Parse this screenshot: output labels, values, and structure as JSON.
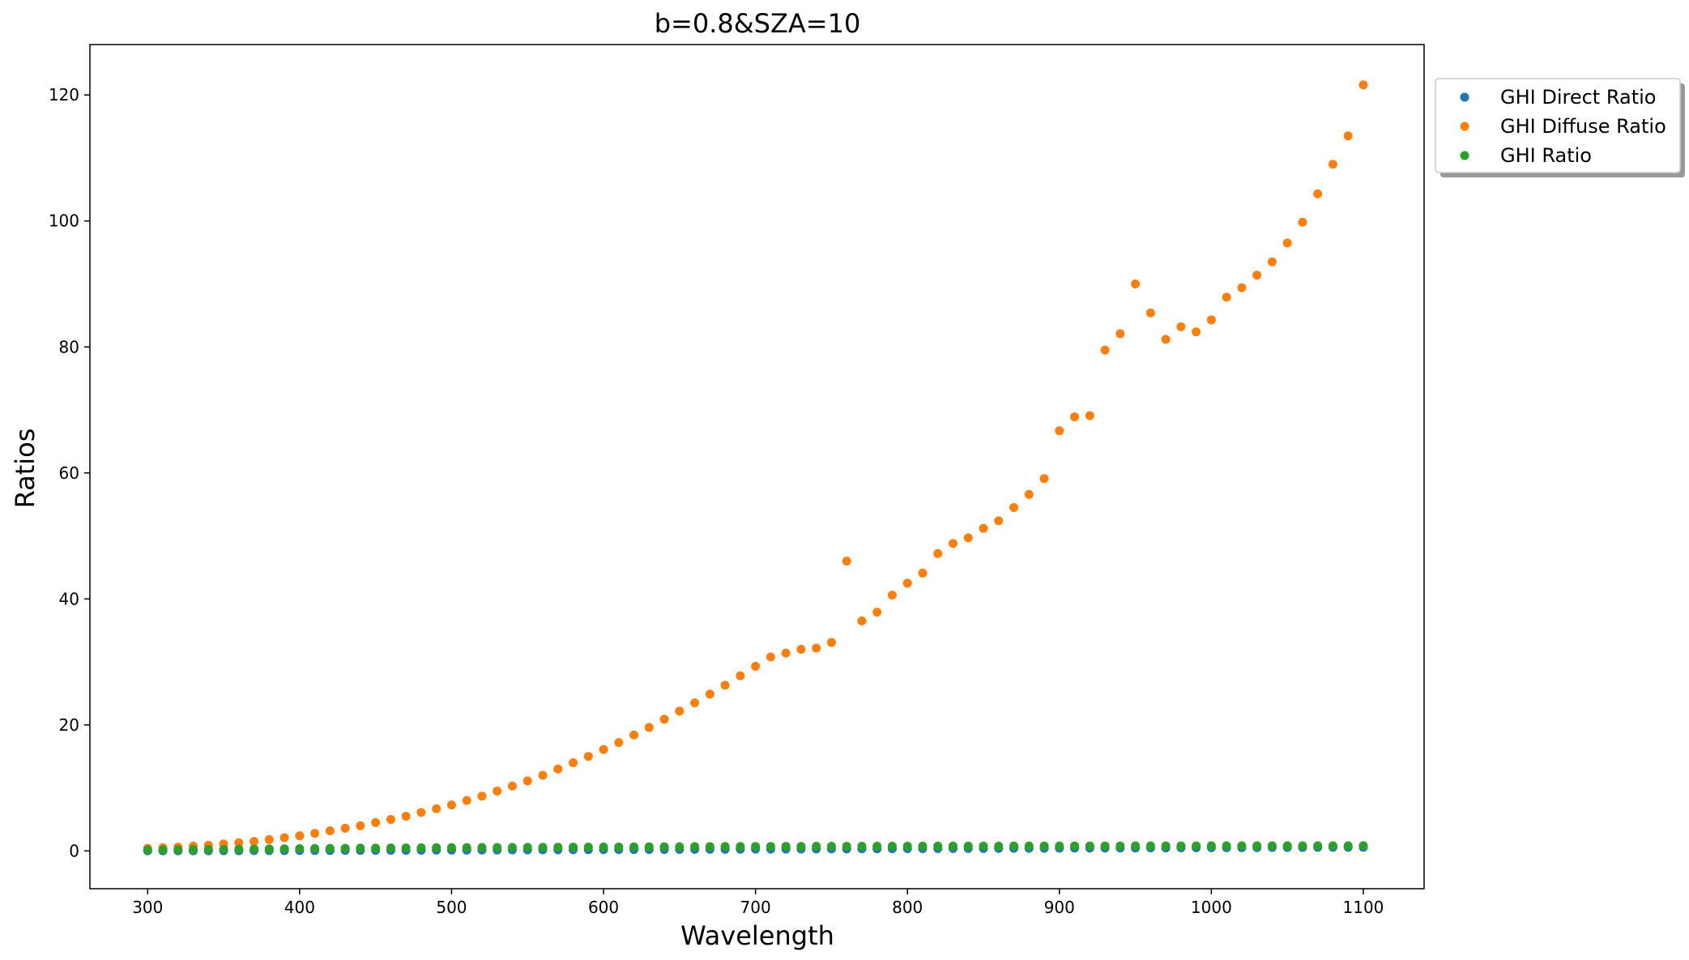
{
  "chart_data": {
    "type": "scatter",
    "title": "b=0.8&SZA=10",
    "xlabel": "Wavelength",
    "ylabel": "Ratios",
    "xlim": [
      262,
      1140
    ],
    "ylim": [
      -6,
      128
    ],
    "xticks": [
      300,
      400,
      500,
      600,
      700,
      800,
      900,
      1000,
      1100
    ],
    "yticks": [
      0,
      20,
      40,
      60,
      80,
      100,
      120
    ],
    "grid": false,
    "legend_position": "outside-top-right",
    "x": [
      300,
      310,
      320,
      330,
      340,
      350,
      360,
      370,
      380,
      390,
      400,
      410,
      420,
      430,
      440,
      450,
      460,
      470,
      480,
      490,
      500,
      510,
      520,
      530,
      540,
      550,
      560,
      570,
      580,
      590,
      600,
      610,
      620,
      630,
      640,
      650,
      660,
      670,
      680,
      690,
      700,
      710,
      720,
      730,
      740,
      750,
      760,
      770,
      780,
      790,
      800,
      810,
      820,
      830,
      840,
      850,
      860,
      870,
      880,
      890,
      900,
      910,
      920,
      930,
      940,
      950,
      960,
      970,
      980,
      990,
      1000,
      1010,
      1020,
      1030,
      1040,
      1050,
      1060,
      1070,
      1080,
      1090,
      1100
    ],
    "series": [
      {
        "name": "GHI Direct Ratio",
        "color": "#1f77b4",
        "values": [
          0.01,
          0.01,
          0.01,
          0.02,
          0.02,
          0.03,
          0.03,
          0.04,
          0.04,
          0.05,
          0.06,
          0.06,
          0.07,
          0.08,
          0.08,
          0.09,
          0.1,
          0.1,
          0.11,
          0.12,
          0.13,
          0.13,
          0.14,
          0.15,
          0.16,
          0.16,
          0.17,
          0.18,
          0.19,
          0.19,
          0.2,
          0.21,
          0.22,
          0.22,
          0.23,
          0.24,
          0.25,
          0.26,
          0.26,
          0.27,
          0.28,
          0.29,
          0.29,
          0.3,
          0.31,
          0.32,
          0.32,
          0.33,
          0.34,
          0.35,
          0.36,
          0.36,
          0.37,
          0.38,
          0.39,
          0.39,
          0.4,
          0.41,
          0.42,
          0.42,
          0.43,
          0.44,
          0.45,
          0.45,
          0.46,
          0.47,
          0.48,
          0.48,
          0.49,
          0.5,
          0.51,
          0.51,
          0.52,
          0.53,
          0.54,
          0.54,
          0.55,
          0.56,
          0.57,
          0.57,
          0.58
        ]
      },
      {
        "name": "GHI Diffuse Ratio",
        "color": "#ff7f0e",
        "values": [
          0.4,
          0.5,
          0.6,
          0.75,
          0.9,
          1.1,
          1.3,
          1.5,
          1.8,
          2.1,
          2.4,
          2.8,
          3.2,
          3.6,
          4.0,
          4.5,
          5.0,
          5.5,
          6.1,
          6.7,
          7.3,
          8.0,
          8.7,
          9.5,
          10.3,
          11.1,
          12.0,
          13.0,
          14.0,
          15.0,
          16.1,
          17.2,
          18.4,
          19.6,
          20.9,
          22.2,
          23.5,
          24.9,
          26.3,
          27.8,
          29.3,
          30.8,
          31.4,
          32.0,
          32.2,
          33.1,
          46.0,
          36.5,
          37.9,
          40.6,
          42.5,
          44.1,
          47.2,
          48.8,
          49.7,
          51.2,
          52.4,
          54.5,
          56.6,
          59.1,
          66.7,
          68.9,
          69.1,
          79.5,
          82.1,
          90.0,
          85.4,
          81.2,
          83.2,
          82.4,
          84.3,
          87.9,
          89.4,
          91.4,
          93.5,
          96.5,
          99.8,
          104.3,
          109.0,
          113.5,
          121.6
        ]
      },
      {
        "name": "GHI Ratio",
        "color": "#2ca02c",
        "values": [
          0.15,
          0.18,
          0.2,
          0.22,
          0.24,
          0.26,
          0.28,
          0.3,
          0.32,
          0.34,
          0.36,
          0.38,
          0.4,
          0.42,
          0.44,
          0.45,
          0.47,
          0.48,
          0.5,
          0.51,
          0.52,
          0.53,
          0.54,
          0.55,
          0.56,
          0.57,
          0.58,
          0.59,
          0.6,
          0.61,
          0.62,
          0.63,
          0.64,
          0.65,
          0.66,
          0.67,
          0.68,
          0.69,
          0.7,
          0.7,
          0.71,
          0.71,
          0.72,
          0.72,
          0.73,
          0.73,
          0.74,
          0.74,
          0.75,
          0.75,
          0.75,
          0.76,
          0.76,
          0.76,
          0.77,
          0.77,
          0.77,
          0.78,
          0.78,
          0.78,
          0.78,
          0.79,
          0.79,
          0.79,
          0.79,
          0.8,
          0.8,
          0.8,
          0.8,
          0.8,
          0.81,
          0.81,
          0.81,
          0.81,
          0.81,
          0.82,
          0.82,
          0.82,
          0.82,
          0.82,
          0.83
        ]
      }
    ]
  }
}
